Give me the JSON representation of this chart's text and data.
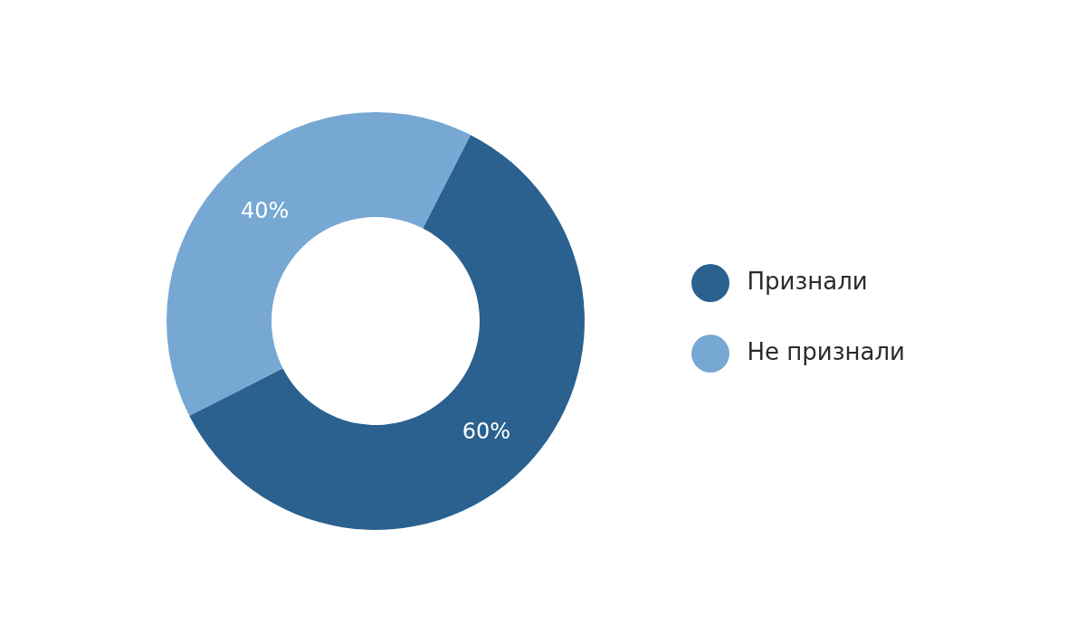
{
  "chart_data": {
    "type": "donut",
    "categories": [
      "Признали",
      "Не признали"
    ],
    "values": [
      60,
      40
    ],
    "colors": [
      "#2a618f",
      "#76a8d3"
    ],
    "value_labels": [
      "60%",
      "40%"
    ],
    "legend": "right"
  }
}
